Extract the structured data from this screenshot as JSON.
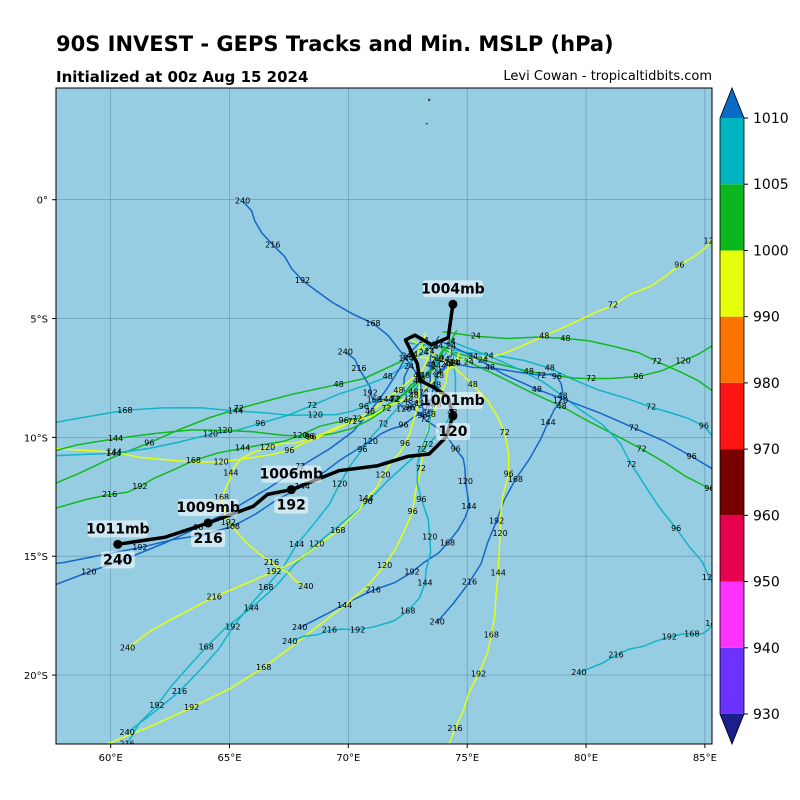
{
  "header": {
    "title": "90S INVEST - GEPS Tracks and Min. MSLP (hPa)",
    "subtitle": "Initialized at 00z Aug 15 2024",
    "credit": "Levi Cowan - tropicaltidbits.com"
  },
  "map": {
    "lon_range": [
      57.7,
      85.3
    ],
    "lat_range": [
      -22.9,
      4.7
    ],
    "lon_ticks": [
      60,
      65,
      70,
      75,
      80,
      85
    ],
    "lon_tick_labels": [
      "60°E",
      "65°E",
      "70°E",
      "75°E",
      "80°E",
      "85°E"
    ],
    "lat_ticks": [
      0,
      -5,
      -10,
      -15,
      -20
    ],
    "lat_tick_labels": [
      "0°",
      "5°S",
      "10°S",
      "15°S",
      "20°S"
    ],
    "ocean_color": "#96cde3",
    "grid_color": "#4d7a8f"
  },
  "mean_track": {
    "points": [
      [
        74.4,
        -4.4
      ],
      [
        74.2,
        -5.8
      ],
      [
        73.5,
        -6.1
      ],
      [
        72.8,
        -5.7
      ],
      [
        72.4,
        -5.9
      ],
      [
        72.9,
        -6.9
      ],
      [
        73.0,
        -7.6
      ],
      [
        73.6,
        -7.9
      ],
      [
        74.2,
        -8.3
      ],
      [
        74.4,
        -9.1
      ],
      [
        74.1,
        -10.0
      ],
      [
        73.4,
        -10.7
      ],
      [
        72.5,
        -10.8
      ],
      [
        71.2,
        -11.2
      ],
      [
        69.6,
        -11.4
      ],
      [
        67.6,
        -12.2
      ],
      [
        66.6,
        -12.4
      ],
      [
        66.0,
        -12.9
      ],
      [
        64.1,
        -13.6
      ],
      [
        62.3,
        -14.2
      ],
      [
        60.3,
        -14.5
      ]
    ],
    "markers": [
      {
        "lon": 74.4,
        "lat": -4.4,
        "pressure": "1004mb",
        "hour": ""
      },
      {
        "lon": 74.4,
        "lat": -9.1,
        "pressure": "1001mb",
        "hour": "120"
      },
      {
        "lon": 67.6,
        "lat": -12.2,
        "pressure": "1006mb",
        "hour": "192"
      },
      {
        "lon": 64.1,
        "lat": -13.6,
        "pressure": "1009mb",
        "hour": "216"
      },
      {
        "lon": 60.3,
        "lat": -14.5,
        "pressure": "1011mb",
        "hour": "240"
      }
    ]
  },
  "ensemble": {
    "colors": [
      "#12b4c8",
      "#1566c8",
      "#12b81e",
      "#e6ff0a",
      "#12b4c8",
      "#12b81e",
      "#1566c8",
      "#e6ff0a"
    ],
    "hour_labels": [
      "24",
      "48",
      "72",
      "96",
      "120",
      "144",
      "168",
      "192",
      "216",
      "240"
    ]
  },
  "colorbar": {
    "levels": [
      930,
      940,
      950,
      960,
      970,
      980,
      990,
      1000,
      1005,
      1010
    ],
    "labels": [
      "930",
      "940",
      "950",
      "960",
      "970",
      "980",
      "990",
      "1000",
      "1005",
      "1010"
    ],
    "colors": [
      "#6a33ff",
      "#ff33ff",
      "#e6004d",
      "#780000",
      "#ff1414",
      "#ff7300",
      "#e6ff0a",
      "#0ab81e",
      "#00b4c0"
    ],
    "under_color": "#1a1f8c",
    "over_color": "#0a6ac8"
  }
}
